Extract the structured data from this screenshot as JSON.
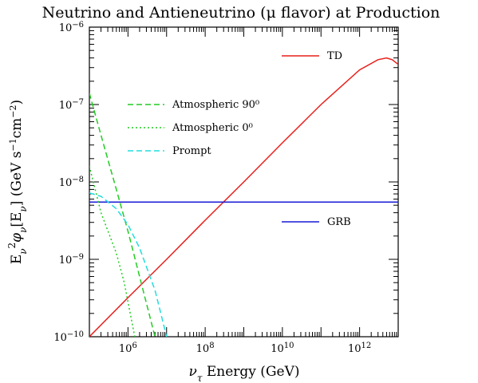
{
  "chart_data": {
    "type": "line",
    "title": "Neutrino and Antieneutrino (μ flavor) at Production",
    "xlabel": "ντ Energy (GeV)",
    "ylabel": "Eν²φν[Eν] (GeV s⁻¹cm⁻²)",
    "xscale": "log",
    "yscale": "log",
    "xlim": [
      100000,
      10000000000000
    ],
    "ylim": [
      1e-10,
      1e-06
    ],
    "xticks": [
      {
        "value": 1000000,
        "label": "10",
        "exp": "6"
      },
      {
        "value": 100000000,
        "label": "10",
        "exp": "8"
      },
      {
        "value": 10000000000,
        "label": "10",
        "exp": "10"
      },
      {
        "value": 1000000000000,
        "label": "10",
        "exp": "12"
      }
    ],
    "yticks": [
      {
        "value": 1e-10,
        "label": "10",
        "exp": "−10"
      },
      {
        "value": 1e-09,
        "label": "10",
        "exp": "−9"
      },
      {
        "value": 1e-08,
        "label": "10",
        "exp": "−8"
      },
      {
        "value": 1e-07,
        "label": "10",
        "exp": "−7"
      },
      {
        "value": 1e-06,
        "label": "10",
        "exp": "−6"
      }
    ],
    "grid": false,
    "series": [
      {
        "name": "TD",
        "color": "#e8201c",
        "dash": "solid",
        "legend_placement": "top-right",
        "x": [
          100000,
          1000000,
          10000000,
          100000000,
          1000000000,
          10000000000,
          100000000000,
          1000000000000,
          3000000000000,
          5000000000000,
          7000000000000,
          10000000000000
        ],
        "y": [
          1e-10,
          3.2e-10,
          1e-09,
          3.2e-09,
          1e-08,
          3.2e-08,
          1e-07,
          2.8e-07,
          3.8e-07,
          4e-07,
          3.8e-07,
          3.3e-07
        ]
      },
      {
        "name": "GRB",
        "color": "#1a1ad6",
        "dash": "solid",
        "legend_placement": "right",
        "x": [
          100000,
          10000000000000
        ],
        "y": [
          5.5e-09,
          5.5e-09
        ]
      },
      {
        "name": "Atmospheric 90⁰",
        "color": "#22cc22",
        "dash": "dashed",
        "legend_placement": "upper-left",
        "x": [
          100000,
          200000,
          500000,
          1000000,
          2000000,
          5000000
        ],
        "y": [
          1.4e-07,
          4e-08,
          8e-09,
          2.3e-09,
          6e-10,
          1e-10
        ]
      },
      {
        "name": "Atmospheric 0⁰",
        "color": "#22cc22",
        "dash": "dotted",
        "legend_placement": "upper-left",
        "x": [
          100000,
          200000,
          500000,
          800000,
          1100000,
          1500000
        ],
        "y": [
          1.6e-08,
          4e-09,
          1.2e-09,
          5e-10,
          2.2e-10,
          1e-10
        ]
      },
      {
        "name": "Prompt",
        "color": "#22dddd",
        "dash": "dashed",
        "legend_placement": "upper-left",
        "x": [
          100000,
          200000,
          500000,
          1000000,
          2000000,
          5000000,
          10000000
        ],
        "y": [
          7.2e-09,
          6.5e-09,
          4.5e-09,
          2.8e-09,
          1.4e-09,
          4e-10,
          1e-10
        ]
      }
    ]
  }
}
